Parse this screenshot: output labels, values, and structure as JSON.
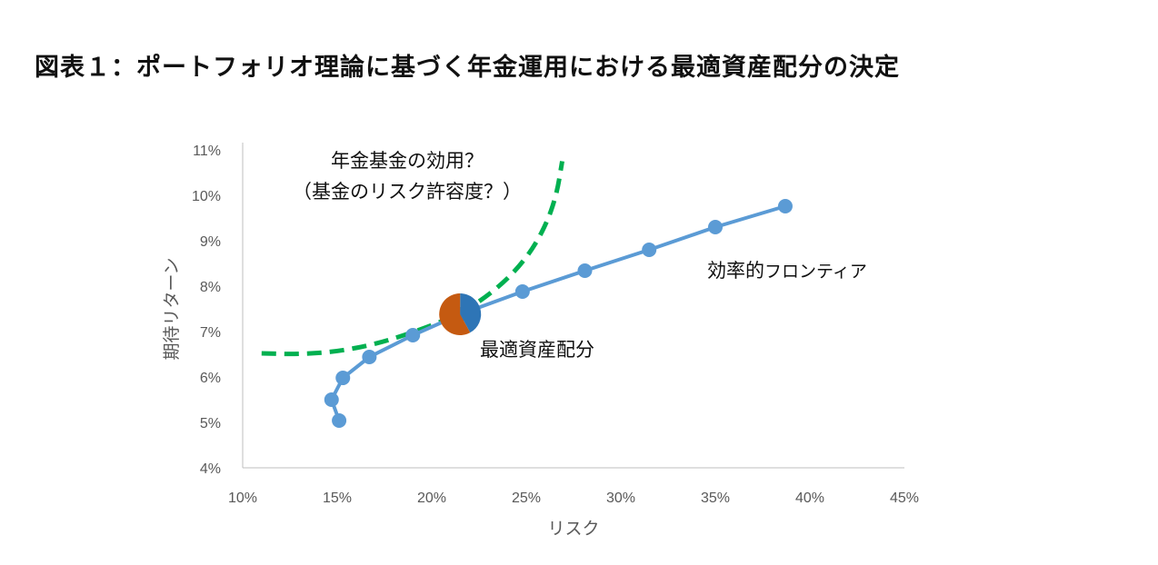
{
  "title": "図表１：ポートフォリオ理論に基づく年金運用における最適資産配分の決定",
  "chart_data": {
    "type": "line",
    "title": "図表１：ポートフォリオ理論に基づく年金運用における最適資産配分の決定",
    "xlabel": "リスク",
    "ylabel": "期待リターン",
    "xlim": [
      10,
      45
    ],
    "ylim": [
      4,
      11
    ],
    "xticks": [
      "10%",
      "15%",
      "20%",
      "25%",
      "30%",
      "35%",
      "40%",
      "45%"
    ],
    "yticks": [
      "4%",
      "5%",
      "6%",
      "7%",
      "8%",
      "9%",
      "10%",
      "11%"
    ],
    "grid": false,
    "series": [
      {
        "name": "効率的フロンティア",
        "color": "#5b9bd5",
        "x": [
          15.1,
          14.7,
          15.3,
          16.7,
          19.0,
          21.5,
          24.8,
          28.1,
          31.5,
          35.0,
          38.7
        ],
        "y": [
          5.04,
          5.5,
          5.98,
          6.44,
          6.92,
          7.38,
          7.88,
          8.34,
          8.8,
          9.3,
          9.76
        ]
      },
      {
        "name": "年金基金の効用",
        "color": "#00b050",
        "style": "dashed",
        "x": [
          11.0,
          13.0,
          15.0,
          17.0,
          19.0,
          21.5,
          23.5,
          25.0,
          26.0,
          26.6,
          26.9
        ],
        "y": [
          6.52,
          6.5,
          6.56,
          6.72,
          6.98,
          7.38,
          7.95,
          8.6,
          9.3,
          10.0,
          10.75
        ]
      }
    ],
    "optimal_point": {
      "x": 21.5,
      "y": 7.38,
      "pie": [
        {
          "value": 42,
          "color": "#2e75b6"
        },
        {
          "value": 58,
          "color": "#c55a11"
        }
      ]
    },
    "annotations": {
      "utility_line1": "年金基金の効用？",
      "utility_line2": "（基金のリスク許容度？）",
      "frontier_bold": "効率的",
      "frontier_rest": "フロンティア",
      "optimal": "最適資産配分"
    }
  }
}
